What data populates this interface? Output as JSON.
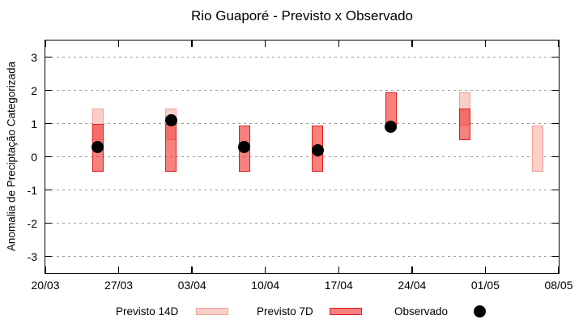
{
  "title": "Rio Guaporé - Previsto x Observado",
  "chart_data": {
    "type": "bar",
    "subtype": "range-bars-with-scatter",
    "title": "Rio Guaporé - Previsto x Observado",
    "xlabel": "",
    "ylabel": "Anomalia de Preciptação Categorizada",
    "ylim": [
      -3.5,
      3.5
    ],
    "yticks": [
      3,
      2,
      1,
      0,
      -1,
      -2,
      -3
    ],
    "grid": "horizontal-dotted",
    "legend_position": "bottom",
    "x_axis": {
      "tick_labels": [
        "20/03",
        "27/03",
        "03/04",
        "10/04",
        "17/04",
        "24/04",
        "01/05",
        "08/05"
      ],
      "tick_days": [
        0,
        7,
        14,
        21,
        28,
        35,
        42,
        49
      ],
      "range_days": [
        0,
        49
      ]
    },
    "series": [
      {
        "name": "Previsto 14D",
        "type": "range_bar",
        "fill": "#fbcfc9",
        "border": "#f29e95",
        "points": [
          {
            "date": "25/03",
            "day": 5,
            "low": 0.5,
            "high": 1.45
          },
          {
            "date": "01/04",
            "day": 12,
            "low": 0.5,
            "high": 1.45
          },
          {
            "date": "29/04",
            "day": 40,
            "low": 0.95,
            "high": 1.95
          },
          {
            "date": "06/05",
            "day": 47,
            "low": -0.45,
            "high": 0.95
          }
        ]
      },
      {
        "name": "Previsto 7D",
        "type": "range_bar",
        "fill": "rgba(240,45,38,0.6)",
        "border": "#e01d1d",
        "points": [
          {
            "date": "25/03",
            "day": 5,
            "low": -0.45,
            "high": 1.0
          },
          {
            "date": "01/04",
            "day": 12,
            "low": -0.45,
            "high": 1.0
          },
          {
            "date": "08/04",
            "day": 19,
            "low": -0.45,
            "high": 0.95
          },
          {
            "date": "15/04",
            "day": 26,
            "low": -0.45,
            "high": 0.95
          },
          {
            "date": "22/04",
            "day": 33,
            "low": 0.95,
            "high": 1.95
          },
          {
            "date": "29/04",
            "day": 40,
            "low": 0.5,
            "high": 1.45
          }
        ]
      },
      {
        "name": "Observado",
        "type": "scatter",
        "color": "#000000",
        "points": [
          {
            "date": "25/03",
            "day": 5,
            "value": 0.3
          },
          {
            "date": "01/04",
            "day": 12,
            "value": 1.1
          },
          {
            "date": "08/04",
            "day": 19,
            "value": 0.3
          },
          {
            "date": "15/04",
            "day": 26,
            "value": 0.2
          },
          {
            "date": "22/04",
            "day": 33,
            "value": 0.9
          }
        ]
      }
    ],
    "legend": [
      {
        "label": "Previsto 14D",
        "swatch": "light-pink-bar"
      },
      {
        "label": "Previsto 7D",
        "swatch": "red-bar"
      },
      {
        "label": "Observado",
        "swatch": "black-dot"
      }
    ]
  }
}
